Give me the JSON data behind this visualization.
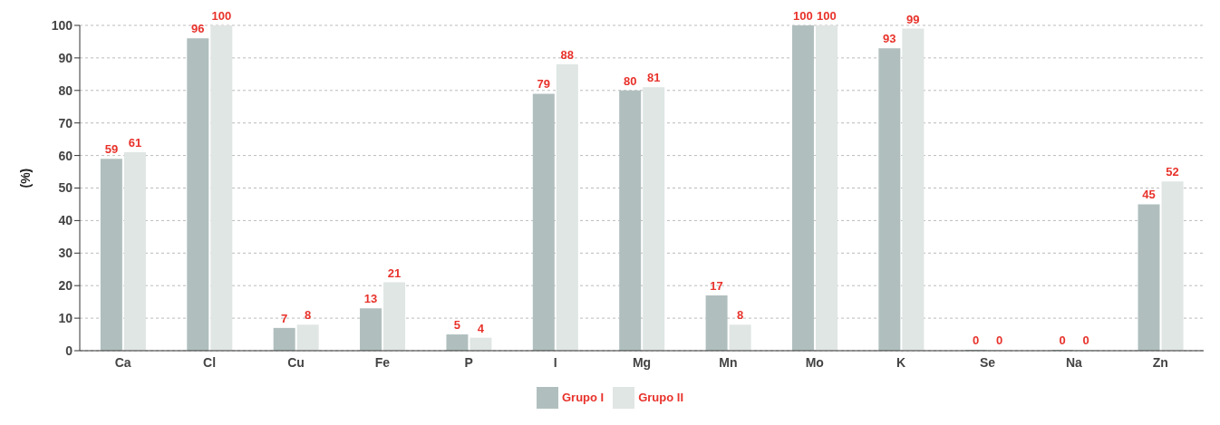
{
  "chart_data": {
    "type": "bar",
    "ylabel": "(%)",
    "categories": [
      "Ca",
      "Cl",
      "Cu",
      "Fe",
      "P",
      "I",
      "Mg",
      "Mn",
      "Mo",
      "K",
      "Se",
      "Na",
      "Zn"
    ],
    "series": [
      {
        "name": "Grupo I",
        "color": "#b0bfbe",
        "values": [
          59,
          96,
          7,
          13,
          5,
          79,
          80,
          17,
          100,
          93,
          0,
          0,
          45
        ]
      },
      {
        "name": "Grupo II",
        "color": "#dfe6e4",
        "values": [
          61,
          100,
          8,
          21,
          4,
          88,
          81,
          8,
          100,
          99,
          0,
          0,
          52
        ]
      }
    ],
    "ylim": [
      0,
      100
    ],
    "yticks": [
      0,
      10,
      20,
      30,
      40,
      50,
      60,
      70,
      80,
      90,
      100
    ],
    "grid": "y",
    "legend": "bottom",
    "data_labels": true
  }
}
